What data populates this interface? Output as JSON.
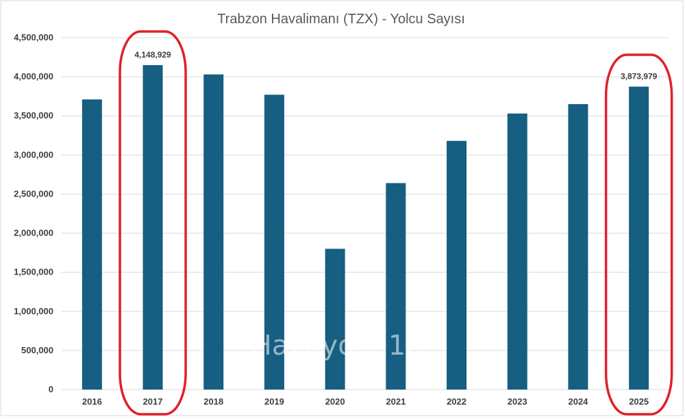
{
  "chart_data": {
    "type": "bar",
    "title": "Trabzon Havalimanı (TZX) - Yolcu Sayısı",
    "xlabel": "",
    "ylabel": "",
    "categories": [
      "2016",
      "2017",
      "2018",
      "2019",
      "2020",
      "2021",
      "2022",
      "2023",
      "2024",
      "2025"
    ],
    "series": [
      {
        "values": [
          3710000,
          4148929,
          4030000,
          3770000,
          1800000,
          2640000,
          3180000,
          3530000,
          3650000,
          3873979
        ]
      }
    ],
    "ylim": [
      0,
      4500000
    ],
    "yticks": [
      0,
      500000,
      1000000,
      1500000,
      2000000,
      2500000,
      3000000,
      3500000,
      4000000,
      4500000
    ],
    "ytick_labels": [
      "0",
      "500,000",
      "1,000,000",
      "1,500,000",
      "2,000,000",
      "2,500,000",
      "3,000,000",
      "3,500,000",
      "4,000,000",
      "4,500,000"
    ],
    "data_labels": [
      {
        "category": "2017",
        "text": "4,148,929"
      },
      {
        "category": "2025",
        "text": "3,873,979"
      }
    ],
    "highlighted_categories": [
      "2017",
      "2025"
    ],
    "grid": true,
    "legend": "none",
    "bar_color": "#165e82",
    "highlight_color": "#e0202a"
  },
  "watermark": "Havayolu 101"
}
